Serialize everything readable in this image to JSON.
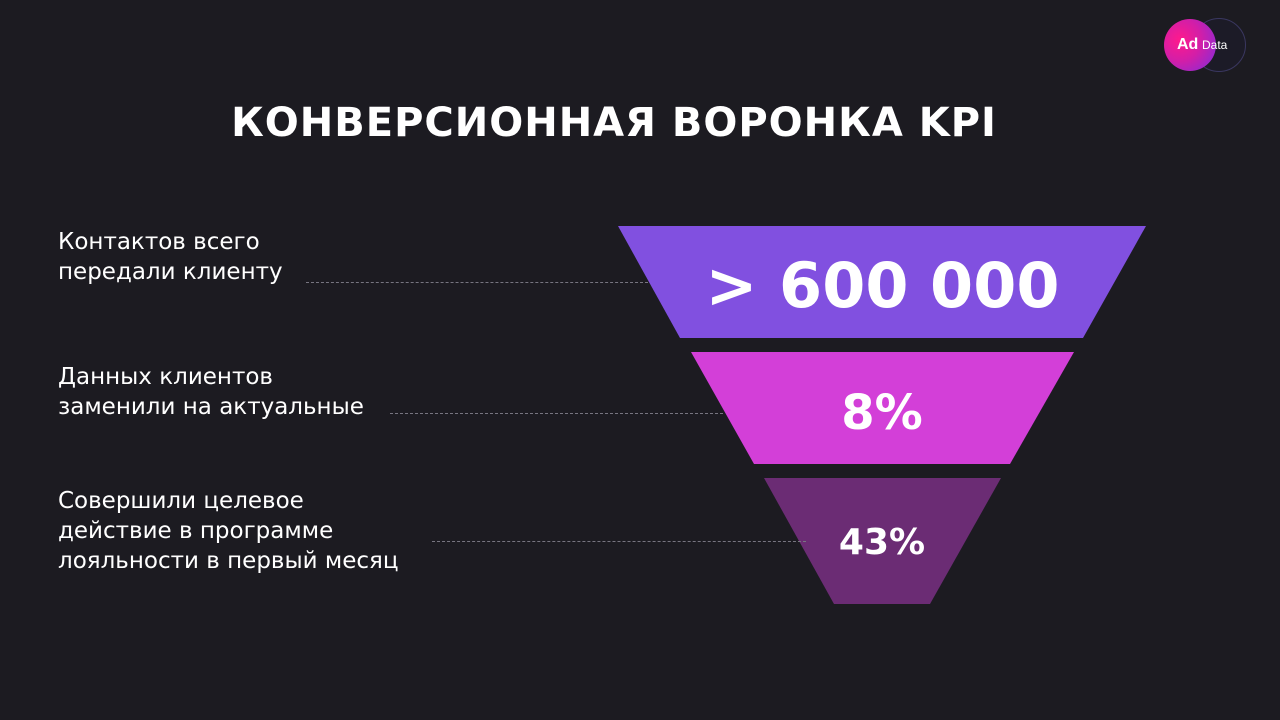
{
  "brand": {
    "ad": "Ad",
    "data": "Data"
  },
  "title": "КОНВЕРСИОННАЯ ВОРОНКА KPI",
  "stages": [
    {
      "label": "Контактов всего\nпередали клиенту",
      "value": "> 600 000",
      "color": "#8150e0"
    },
    {
      "label": "Данных клиентов\nзаменили на актуальные",
      "value": "8%",
      "color": "#d33fd8"
    },
    {
      "label": "Совершили целевое\nдействие в программе\nлояльности в первый месяц",
      "value": "43%",
      "color": "#6b2c74"
    }
  ],
  "colors": {
    "background": "#1c1b21",
    "leader": "#777580"
  }
}
